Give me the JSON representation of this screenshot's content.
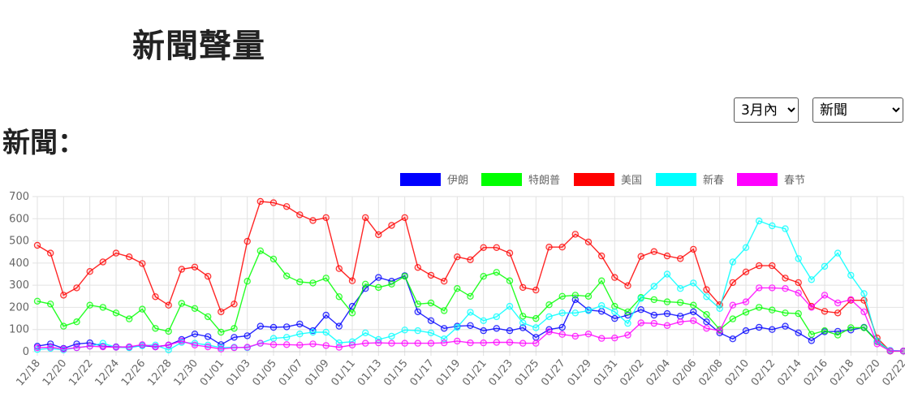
{
  "page": {
    "title": "新聞聲量",
    "section_label": "新聞："
  },
  "controls": {
    "range": {
      "selected": "3月內",
      "options": [
        "3月內"
      ]
    },
    "type": {
      "selected": "新聞",
      "options": [
        "新聞"
      ]
    }
  },
  "chart_data": {
    "type": "line",
    "ylim": [
      0,
      700
    ],
    "yticks": [
      0,
      100,
      200,
      300,
      400,
      500,
      600,
      700
    ],
    "grid": true,
    "legend_position": "top-right",
    "x": [
      "12/18",
      "12/19",
      "12/20",
      "12/21",
      "12/22",
      "12/23",
      "12/24",
      "12/25",
      "12/26",
      "12/27",
      "12/28",
      "12/29",
      "12/30",
      "12/31",
      "01/01",
      "01/02",
      "01/03",
      "01/04",
      "01/05",
      "01/06",
      "01/07",
      "01/08",
      "01/09",
      "01/10",
      "01/11",
      "01/12",
      "01/13",
      "01/14",
      "01/15",
      "01/16",
      "01/17",
      "01/18",
      "01/19",
      "01/20",
      "01/21",
      "01/22",
      "01/23",
      "01/24",
      "01/25",
      "01/26",
      "01/27",
      "01/28",
      "01/29",
      "01/30",
      "01/31",
      "02/01",
      "02/02",
      "02/03",
      "02/04",
      "02/05",
      "02/06",
      "02/07",
      "02/08",
      "02/09",
      "02/10",
      "02/11",
      "02/12",
      "02/13",
      "02/14",
      "02/15",
      "02/16",
      "02/17",
      "02/18",
      "02/19",
      "02/20",
      "02/21",
      "02/22"
    ],
    "xtick_labels": [
      "12/18",
      "12/20",
      "12/22",
      "12/24",
      "12/26",
      "12/28",
      "12/30",
      "01/01",
      "01/03",
      "01/05",
      "01/07",
      "01/09",
      "01/11",
      "01/13",
      "01/15",
      "01/17",
      "01/19",
      "01/21",
      "01/23",
      "01/25",
      "01/27",
      "01/29",
      "01/31",
      "02/02",
      "02/04",
      "02/06",
      "02/08",
      "02/10",
      "02/12",
      "02/14",
      "02/16",
      "02/18",
      "02/20",
      "02/22"
    ],
    "series": [
      {
        "name": "伊朗",
        "color": "#0000ff",
        "values": [
          25,
          35,
          15,
          35,
          40,
          25,
          22,
          20,
          28,
          22,
          30,
          55,
          80,
          68,
          32,
          65,
          72,
          115,
          110,
          112,
          125,
          95,
          165,
          115,
          205,
          285,
          335,
          318,
          343,
          180,
          140,
          105,
          115,
          118,
          95,
          105,
          95,
          108,
          65,
          100,
          110,
          235,
          188,
          182,
          150,
          165,
          190,
          165,
          172,
          160,
          180,
          135,
          85,
          58,
          95,
          110,
          100,
          115,
          85,
          50,
          90,
          92,
          98,
          110,
          48,
          5,
          3
        ]
      },
      {
        "name": "特朗普",
        "color": "#00ff00",
        "values": [
          228,
          215,
          115,
          135,
          210,
          200,
          175,
          148,
          192,
          105,
          92,
          218,
          195,
          158,
          88,
          105,
          318,
          455,
          418,
          342,
          315,
          310,
          332,
          248,
          175,
          305,
          290,
          305,
          340,
          215,
          220,
          185,
          285,
          250,
          340,
          358,
          320,
          160,
          150,
          212,
          250,
          255,
          250,
          320,
          205,
          180,
          245,
          235,
          225,
          222,
          210,
          168,
          100,
          148,
          178,
          200,
          188,
          175,
          172,
          78,
          95,
          75,
          108,
          108,
          45,
          3,
          3
        ]
      },
      {
        "name": "美国",
        "color": "#ff0000",
        "values": [
          480,
          445,
          255,
          288,
          362,
          405,
          445,
          428,
          398,
          248,
          210,
          372,
          382,
          340,
          180,
          215,
          498,
          678,
          672,
          655,
          618,
          592,
          605,
          375,
          320,
          605,
          528,
          570,
          605,
          380,
          345,
          318,
          428,
          415,
          470,
          470,
          445,
          290,
          278,
          472,
          472,
          530,
          495,
          432,
          335,
          298,
          430,
          452,
          432,
          420,
          462,
          280,
          212,
          312,
          360,
          388,
          388,
          332,
          312,
          205,
          182,
          175,
          232,
          232,
          62,
          3,
          3
        ]
      },
      {
        "name": "新春",
        "color": "#00ffff",
        "values": [
          10,
          15,
          8,
          18,
          25,
          38,
          20,
          18,
          28,
          30,
          8,
          42,
          38,
          30,
          18,
          20,
          18,
          38,
          60,
          65,
          80,
          88,
          88,
          40,
          45,
          85,
          55,
          70,
          98,
          95,
          85,
          58,
          110,
          178,
          140,
          158,
          205,
          130,
          108,
          158,
          175,
          175,
          185,
          208,
          180,
          128,
          240,
          295,
          350,
          285,
          310,
          248,
          195,
          405,
          470,
          590,
          568,
          555,
          420,
          325,
          385,
          445,
          345,
          262,
          48,
          5,
          3
        ]
      },
      {
        "name": "春节",
        "color": "#ff00ff",
        "values": [
          18,
          20,
          12,
          18,
          25,
          22,
          20,
          22,
          32,
          22,
          30,
          48,
          30,
          22,
          12,
          18,
          20,
          38,
          32,
          32,
          30,
          35,
          28,
          20,
          30,
          38,
          40,
          38,
          38,
          38,
          38,
          40,
          48,
          40,
          40,
          42,
          42,
          38,
          38,
          90,
          78,
          70,
          80,
          60,
          62,
          75,
          130,
          128,
          118,
          135,
          140,
          105,
          95,
          210,
          225,
          288,
          288,
          285,
          265,
          200,
          255,
          220,
          235,
          180,
          35,
          3,
          3
        ]
      }
    ]
  }
}
